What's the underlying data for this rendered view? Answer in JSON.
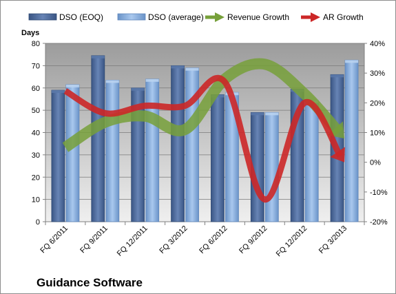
{
  "chart_data": {
    "type": "bar",
    "title": "Guidance Software",
    "ylabel": "Days",
    "categories": [
      "FQ 6/2011",
      "FQ 9/2011",
      "FQ 12/2011",
      "FQ 3/2012",
      "FQ 6/2012",
      "FQ 9/2012",
      "FQ 12/2012",
      "FQ 3/2013"
    ],
    "ylim": [
      0,
      80
    ],
    "yticks": [
      0,
      10,
      20,
      30,
      40,
      50,
      60,
      70,
      80
    ],
    "y2lim": [
      -20,
      40
    ],
    "y2ticks": [
      "-20%",
      "-10%",
      "0%",
      "10%",
      "20%",
      "30%",
      "40%"
    ],
    "y2tick_values": [
      -20,
      -10,
      0,
      10,
      20,
      30,
      40
    ],
    "grid": true,
    "legend_position": "top",
    "bar_series": [
      {
        "name": "DSO (EOQ)",
        "color": "#4f6fa3",
        "values": [
          59,
          74.5,
          60,
          70,
          57,
          49,
          59.5,
          66
        ]
      },
      {
        "name": "DSO (average)",
        "color": "#8db3e2",
        "values": [
          61.5,
          63.5,
          64,
          69,
          58,
          49,
          54.5,
          72.5
        ]
      }
    ],
    "line_series": [
      {
        "name": "Revenue Growth",
        "color": "#77a03a",
        "axis": "secondary",
        "values": [
          5,
          13.5,
          15.5,
          11,
          28,
          33,
          23,
          8
        ]
      },
      {
        "name": "AR Growth",
        "color": "#cc2727",
        "axis": "secondary",
        "values": [
          24,
          16.5,
          19,
          19,
          27,
          -12.5,
          20,
          0
        ]
      }
    ]
  }
}
